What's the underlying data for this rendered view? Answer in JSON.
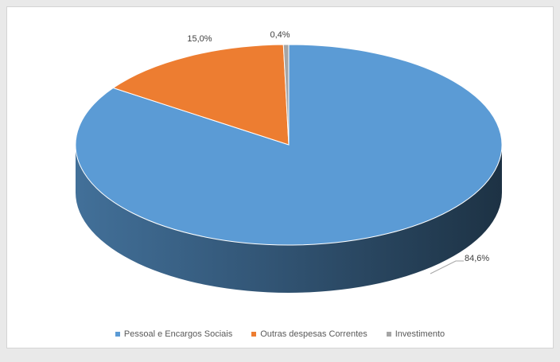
{
  "chart_data": {
    "type": "pie",
    "style": "3d-exploded-none",
    "title": "",
    "categories": [
      "Pessoal e Encargos Sociais",
      "Outras despesas Correntes",
      "Investimento"
    ],
    "values": [
      84.6,
      15.0,
      0.4
    ],
    "data_labels": [
      "84,6%",
      "15,0%",
      "0,4%"
    ],
    "colors": [
      "#5b9bd5",
      "#ed7d31",
      "#a5a5a5"
    ],
    "legend_position": "bottom"
  }
}
